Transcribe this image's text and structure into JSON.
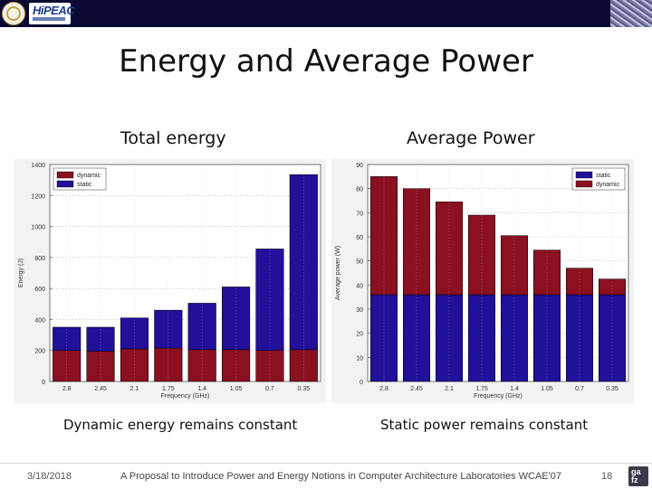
{
  "slide": {
    "title": "Energy and Average Power",
    "left_heading": "Total energy",
    "right_heading": "Average Power",
    "left_caption": "Dynamic energy remains constant",
    "right_caption": "Static power remains constant"
  },
  "footer": {
    "date": "3/18/2018",
    "text": "A Proposal to Introduce Power and Energy Notions in Computer Architecture Laboratories WCAE'07",
    "page": "18",
    "logo_text": "ga\nfz"
  },
  "colors": {
    "topbar": "#0a0a34",
    "dynamic": "#8b1020",
    "static": "#20109a"
  },
  "chart_data": [
    {
      "type": "bar",
      "stacked": true,
      "title": "Total energy",
      "categories": [
        "2.8",
        "2.45",
        "2.1",
        "1.75",
        "1.4",
        "1.05",
        "0.7",
        "0.35"
      ],
      "series": [
        {
          "name": "dynamic",
          "color": "#8b1020",
          "values": [
            200,
            195,
            210,
            215,
            205,
            205,
            200,
            205
          ]
        },
        {
          "name": "static",
          "color": "#20109a",
          "values": [
            150,
            155,
            200,
            245,
            300,
            405,
            655,
            1130
          ]
        }
      ],
      "stack_order": [
        "dynamic",
        "static"
      ],
      "legend": [
        "dynamic",
        "static"
      ],
      "legend_position": "top-left",
      "xlabel": "Frequency (GHz)",
      "ylabel": "Energy (J)",
      "ylim": [
        0,
        1400
      ],
      "yticks": [
        0,
        200,
        400,
        600,
        800,
        1000,
        1200,
        1400
      ],
      "grid": true
    },
    {
      "type": "bar",
      "stacked": true,
      "title": "Average Power",
      "categories": [
        "2.8",
        "2.45",
        "2.1",
        "1.75",
        "1.4",
        "1.05",
        "0.7",
        "0.35"
      ],
      "series": [
        {
          "name": "static",
          "color": "#20109a",
          "values": [
            36,
            36,
            36,
            36,
            36,
            36,
            36,
            36
          ]
        },
        {
          "name": "dynamic",
          "color": "#8b1020",
          "values": [
            49,
            44,
            38.5,
            33,
            24.5,
            18.5,
            11,
            6.5
          ]
        }
      ],
      "stack_order": [
        "static",
        "dynamic"
      ],
      "legend": [
        "static",
        "dynamic"
      ],
      "legend_position": "top-right",
      "xlabel": "Frequency (GHz)",
      "ylabel": "Average power (W)",
      "ylim": [
        0,
        90
      ],
      "yticks": [
        0,
        10,
        20,
        30,
        40,
        50,
        60,
        70,
        80,
        90
      ],
      "grid": true
    }
  ]
}
